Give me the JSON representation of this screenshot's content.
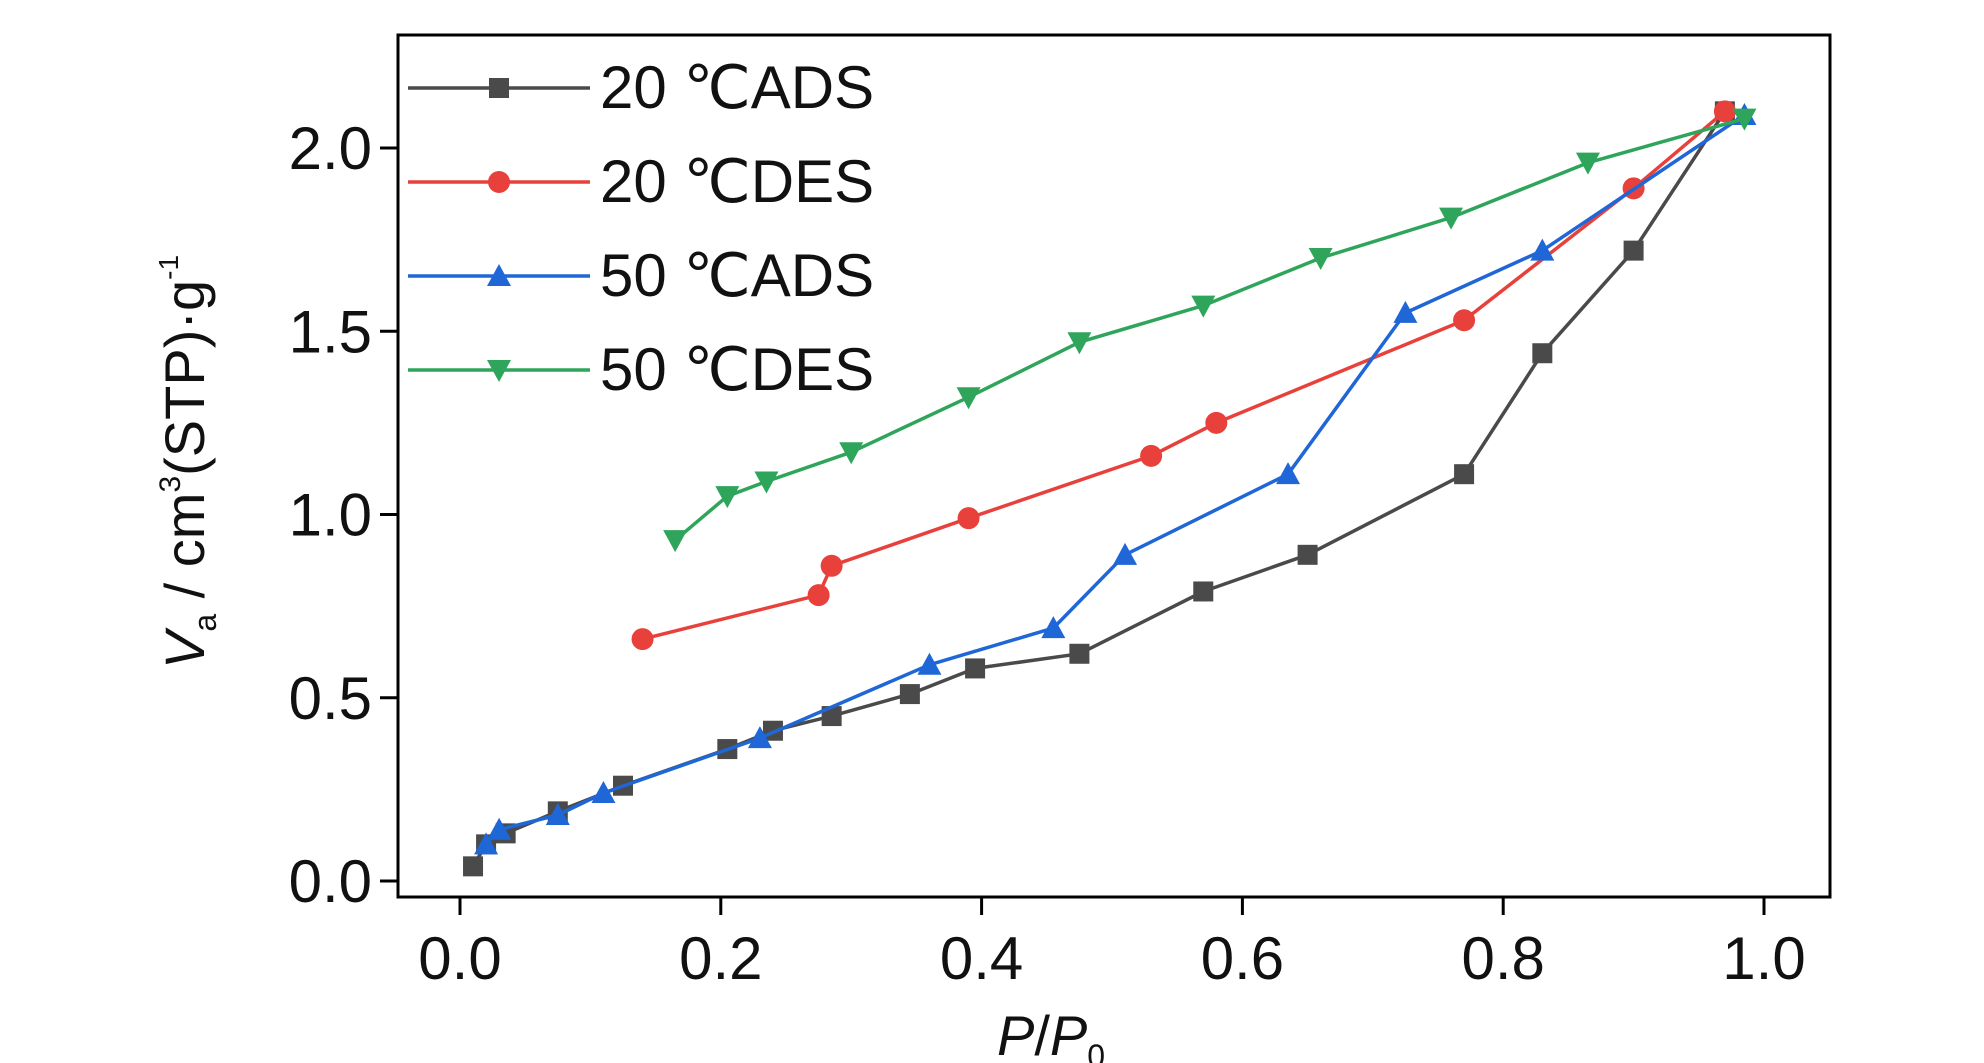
{
  "chart_data": {
    "type": "line",
    "xlabel": {
      "main": "P",
      "sep": "/",
      "main2": "P",
      "sub": "0"
    },
    "ylabel": {
      "main": "V",
      "sub": "a",
      "unit_a": " / cm",
      "sup3": "3",
      "unit_b": "(STP)·g",
      "supneg": "-1"
    },
    "xlim": [
      -0.05,
      1.05
    ],
    "ylim": [
      -0.05,
      2.25
    ],
    "xticks": [
      0.0,
      0.2,
      0.4,
      0.6,
      0.8,
      1.0
    ],
    "xtick_labels": [
      "0.0",
      "0.2",
      "0.4",
      "0.6",
      "0.8",
      "1.0"
    ],
    "yticks": [
      0.0,
      0.5,
      1.0,
      1.5,
      2.0
    ],
    "ytick_labels": [
      "0.0",
      "0.5",
      "1.0",
      "1.5",
      "2.0"
    ],
    "grid": false,
    "legend_position": "top-left",
    "series": [
      {
        "name": "20 ℃ADS",
        "color": "#4a4a4a",
        "marker": "square",
        "x": [
          0.01,
          0.02,
          0.035,
          0.075,
          0.125,
          0.205,
          0.24,
          0.285,
          0.345,
          0.395,
          0.475,
          0.57,
          0.65,
          0.77,
          0.83,
          0.9,
          0.97
        ],
        "y": [
          0.04,
          0.1,
          0.13,
          0.19,
          0.26,
          0.36,
          0.41,
          0.45,
          0.51,
          0.58,
          0.62,
          0.79,
          0.89,
          1.11,
          1.44,
          1.72,
          2.1
        ]
      },
      {
        "name": "20 ℃DES",
        "color": "#e8413c",
        "marker": "circle",
        "x": [
          0.14,
          0.275,
          0.285,
          0.39,
          0.53,
          0.58,
          0.77,
          0.9,
          0.97
        ],
        "y": [
          0.66,
          0.78,
          0.86,
          0.99,
          1.16,
          1.25,
          1.53,
          1.89,
          2.1
        ]
      },
      {
        "name": "50 ℃ADS",
        "color": "#1f66d6",
        "marker": "triangle-up",
        "x": [
          0.02,
          0.03,
          0.075,
          0.11,
          0.23,
          0.36,
          0.455,
          0.51,
          0.635,
          0.725,
          0.83,
          0.985
        ],
        "y": [
          0.1,
          0.14,
          0.18,
          0.24,
          0.39,
          0.59,
          0.69,
          0.89,
          1.11,
          1.55,
          1.72,
          2.09
        ]
      },
      {
        "name": "50 ℃DES",
        "color": "#2ea55b",
        "marker": "triangle-down",
        "x": [
          0.165,
          0.205,
          0.235,
          0.3,
          0.39,
          0.475,
          0.57,
          0.66,
          0.76,
          0.865,
          0.985
        ],
        "y": [
          0.93,
          1.05,
          1.09,
          1.17,
          1.32,
          1.47,
          1.57,
          1.7,
          1.81,
          1.96,
          2.08
        ]
      }
    ]
  }
}
